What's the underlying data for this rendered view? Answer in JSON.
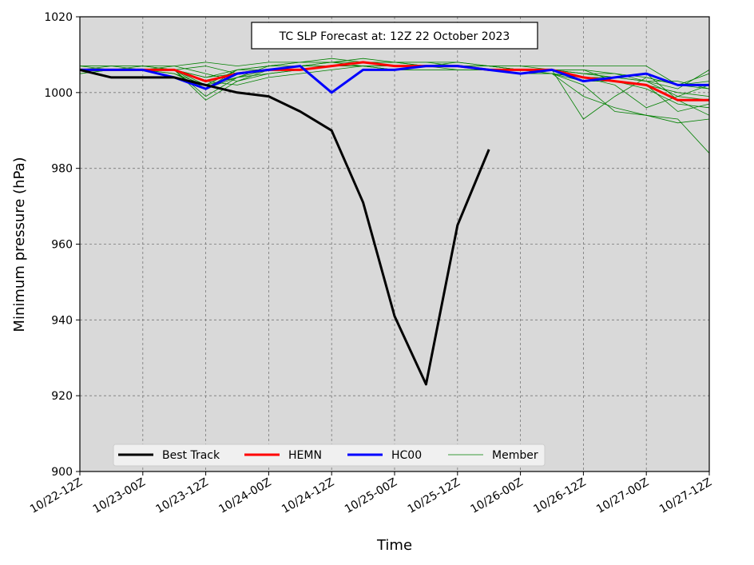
{
  "chart_data": {
    "type": "line",
    "title": "TC SLP Forecast at: 12Z 22 October 2023",
    "xlabel": "Time",
    "ylabel": "Minimum pressure (hPa)",
    "ylim": [
      900,
      1020
    ],
    "yticks": [
      900,
      920,
      940,
      960,
      980,
      1000,
      1020
    ],
    "x_tick_labels": [
      "10/22-12Z",
      "10/23-00Z",
      "10/23-12Z",
      "10/24-00Z",
      "10/24-12Z",
      "10/25-00Z",
      "10/25-12Z",
      "10/26-00Z",
      "10/26-12Z",
      "10/27-00Z",
      "10/27-12Z"
    ],
    "x_positions": [
      "10/22-12Z",
      "10/22-18Z",
      "10/23-00Z",
      "10/23-06Z",
      "10/23-12Z",
      "10/23-18Z",
      "10/24-00Z",
      "10/24-06Z",
      "10/24-12Z",
      "10/24-18Z",
      "10/25-00Z",
      "10/25-06Z",
      "10/25-12Z",
      "10/25-18Z",
      "10/26-00Z",
      "10/26-06Z",
      "10/26-12Z",
      "10/26-18Z",
      "10/27-00Z",
      "10/27-06Z",
      "10/27-12Z"
    ],
    "grid": true,
    "legend_position": "bottom-left",
    "background_color": "#d9d9d9",
    "series": [
      {
        "name": "Best Track",
        "color": "#000000",
        "kind": "main",
        "values": [
          1006,
          1004,
          1004,
          1004,
          1002,
          1000,
          999,
          995,
          990,
          971,
          941,
          923,
          965,
          985
        ]
      },
      {
        "name": "HEMN",
        "color": "#ff0000",
        "kind": "main",
        "values": [
          1006,
          1006,
          1006,
          1006,
          1003,
          1005,
          1006,
          1006,
          1007,
          1008,
          1007,
          1007,
          1007,
          1006,
          1006,
          1006,
          1004,
          1003,
          1002,
          998,
          998
        ]
      },
      {
        "name": "HC00",
        "color": "#0000ff",
        "kind": "main",
        "values": [
          1006,
          1006,
          1006,
          1004,
          1001,
          1005,
          1006,
          1007,
          1000,
          1006,
          1006,
          1007,
          1007,
          1006,
          1005,
          1006,
          1003,
          1004,
          1005,
          1002,
          1002
        ]
      },
      {
        "name": "Member",
        "color": "#008000",
        "kind": "member",
        "values": []
      }
    ],
    "members": [
      [
        1006,
        1006,
        1006,
        1005,
        1002,
        1004,
        1006,
        1007,
        1007,
        1008,
        1007,
        1007,
        1007,
        1006,
        1006,
        1005,
        1004,
        1003,
        1001,
        997,
        996
      ],
      [
        1007,
        1007,
        1007,
        1006,
        1004,
        1006,
        1007,
        1008,
        1008,
        1008,
        1007,
        1007,
        1007,
        1007,
        1006,
        1006,
        1005,
        1004,
        1003,
        999,
        998
      ],
      [
        1006,
        1006,
        1006,
        1007,
        1005,
        1003,
        1005,
        1006,
        1007,
        1007,
        1007,
        1007,
        1008,
        1007,
        1006,
        1006,
        993,
        999,
        1004,
        1002,
        1003
      ],
      [
        1005,
        1006,
        1006,
        1006,
        999,
        1004,
        1007,
        1008,
        1008,
        1009,
        1008,
        1008,
        1007,
        1007,
        1007,
        1006,
        1006,
        1003,
        1002,
        1000,
        999
      ],
      [
        1007,
        1006,
        1006,
        1006,
        1007,
        1005,
        1006,
        1007,
        1008,
        1007,
        1007,
        1007,
        1006,
        1006,
        1006,
        1006,
        1006,
        1005,
        1004,
        1002,
        1001
      ],
      [
        1006,
        1006,
        1007,
        1006,
        1003,
        1002,
        1004,
        1005,
        1006,
        1007,
        1006,
        1007,
        1007,
        1006,
        1005,
        1005,
        999,
        996,
        994,
        993,
        984
      ],
      [
        1006,
        1006,
        1006,
        1005,
        1001,
        1006,
        1006,
        1007,
        1007,
        1008,
        1008,
        1007,
        1007,
        1006,
        1006,
        1006,
        1005,
        1005,
        1003,
        1001,
        1006
      ],
      [
        1006,
        1007,
        1006,
        1006,
        1004,
        1005,
        1006,
        1006,
        1007,
        1008,
        1007,
        1007,
        1007,
        1007,
        1006,
        1006,
        1004,
        1004,
        1005,
        998,
        994
      ],
      [
        1006,
        1006,
        1006,
        1006,
        1002,
        1006,
        1007,
        1007,
        1008,
        1008,
        1008,
        1007,
        1007,
        1007,
        1006,
        1005,
        1004,
        1002,
        996,
        999,
        1002
      ],
      [
        1007,
        1007,
        1007,
        1007,
        1008,
        1007,
        1008,
        1008,
        1009,
        1008,
        1008,
        1008,
        1008,
        1007,
        1007,
        1007,
        1007,
        1007,
        1007,
        1002,
        1005
      ],
      [
        1006,
        1006,
        1006,
        1006,
        1001,
        1004,
        1005,
        1006,
        1007,
        1007,
        1006,
        1006,
        1006,
        1006,
        1005,
        1005,
        1002,
        995,
        994,
        992,
        993
      ],
      [
        1005,
        1006,
        1006,
        1006,
        998,
        1003,
        1006,
        1006,
        1007,
        1007,
        1007,
        1007,
        1007,
        1006,
        1006,
        1006,
        1005,
        1004,
        1003,
        1003,
        1001
      ],
      [
        1006,
        1006,
        1006,
        1006,
        1003,
        1005,
        1006,
        1007,
        1007,
        1007,
        1006,
        1006,
        1006,
        1006,
        1005,
        1005,
        1003,
        1003,
        1002,
        995,
        997
      ]
    ]
  }
}
